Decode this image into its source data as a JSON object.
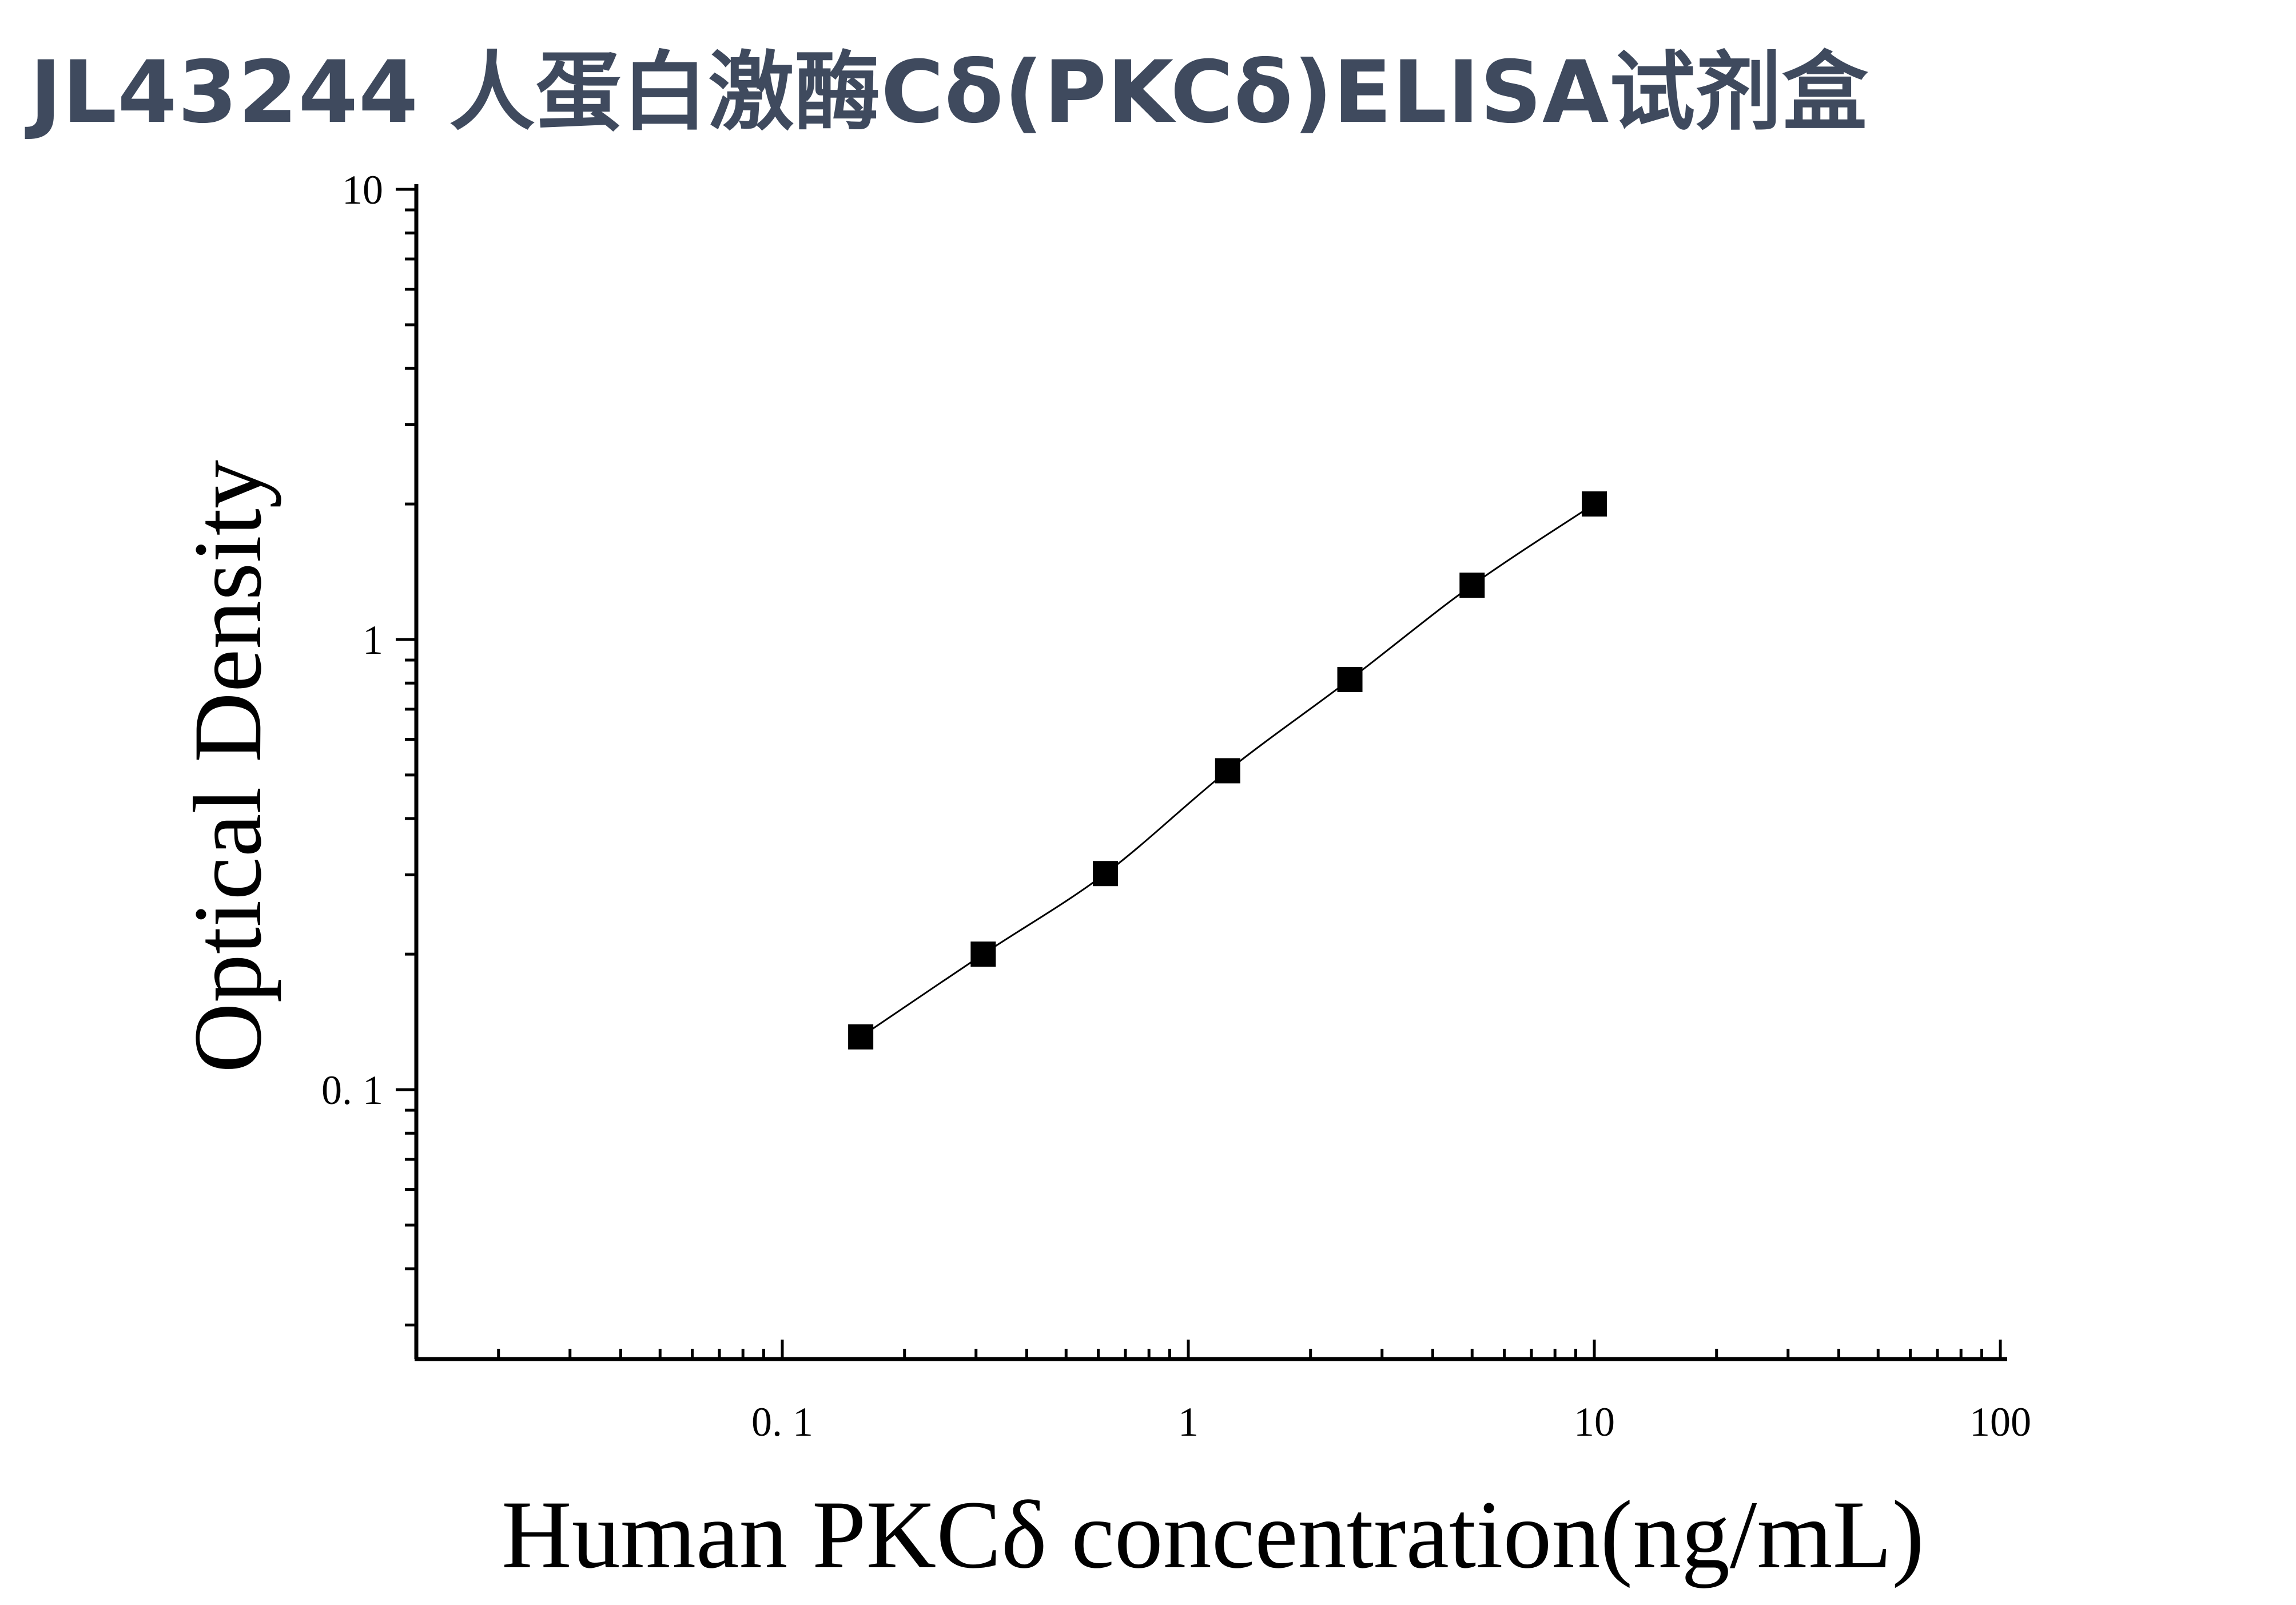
{
  "chart_data": {
    "type": "scatter",
    "title": "JL43244 人蛋白激酶Cδ(PKCδ)ELISA试剂盒",
    "xlabel": "Human PKCδ concentration(ng/mL)",
    "ylabel": "Optical Density",
    "xscale": "log",
    "yscale": "log",
    "xlim": [
      0.012,
      100
    ],
    "ylim": [
      0.026,
      10
    ],
    "x_ticks": [
      {
        "value": 0.1,
        "label": "0. 1"
      },
      {
        "value": 1,
        "label": "1"
      },
      {
        "value": 10,
        "label": "10"
      },
      {
        "value": 100,
        "label": "100"
      }
    ],
    "y_ticks": [
      {
        "value": 0.1,
        "label": "0. 1"
      },
      {
        "value": 1,
        "label": "1"
      },
      {
        "value": 10,
        "label": "10"
      }
    ],
    "grid": false,
    "legend": "none",
    "marker": "square",
    "fit_line": true,
    "series": [
      {
        "x": [
          0.156,
          0.3125,
          0.625,
          1.25,
          2.5,
          5,
          10
        ],
        "y": [
          0.131,
          0.2,
          0.302,
          0.511,
          0.815,
          1.32,
          2.0
        ]
      }
    ]
  }
}
